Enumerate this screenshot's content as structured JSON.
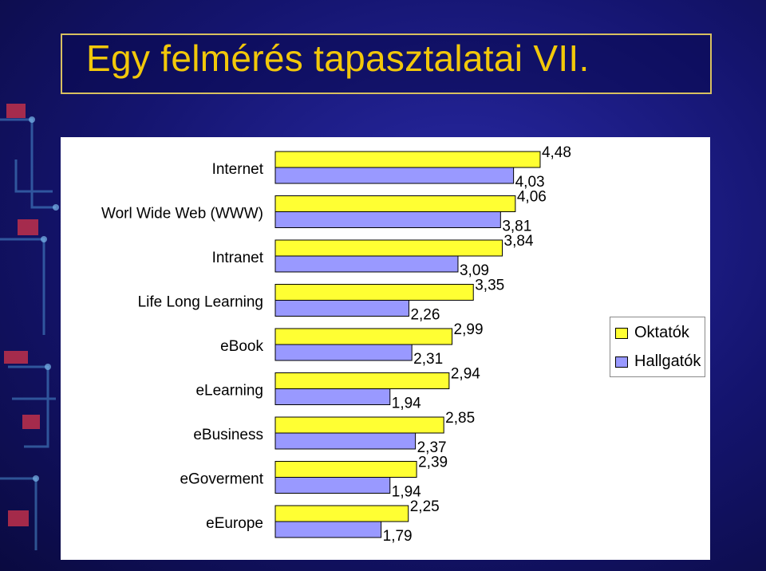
{
  "title": "Egy felmérés tapasztalatai VII.",
  "colors": {
    "oktatok": "#ffff33",
    "hallgatok": "#9999ff",
    "title": "#f2c80a"
  },
  "chart_data": {
    "type": "bar",
    "orientation": "horizontal",
    "categories": [
      "Internet",
      "Worl Wide Web (WWW)",
      "Intranet",
      "Life Long Learning",
      "eBook",
      "eLearning",
      "eBusiness",
      "eGoverment",
      "eEurope"
    ],
    "series": [
      {
        "name": "Oktatók",
        "values": [
          4.48,
          4.06,
          3.84,
          3.35,
          2.99,
          2.94,
          2.85,
          2.39,
          2.25
        ]
      },
      {
        "name": "Hallgatók",
        "values": [
          4.03,
          3.81,
          3.09,
          2.26,
          2.31,
          1.94,
          2.37,
          1.94,
          1.79
        ]
      }
    ],
    "value_labels": {
      "Oktatók": [
        "4,48",
        "4,06",
        "3,84",
        "3,35",
        "2,99",
        "2,94",
        "2,85",
        "2,39",
        "2,25"
      ],
      "Hallgatók": [
        "4,03",
        "3,81",
        "3,09",
        "2,26",
        "2,31",
        "1,94",
        "2,37",
        "1,94",
        "1,79"
      ]
    },
    "legend": {
      "position": "right",
      "entries": [
        "Oktatók",
        "Hallgatók"
      ]
    },
    "grid": false
  }
}
